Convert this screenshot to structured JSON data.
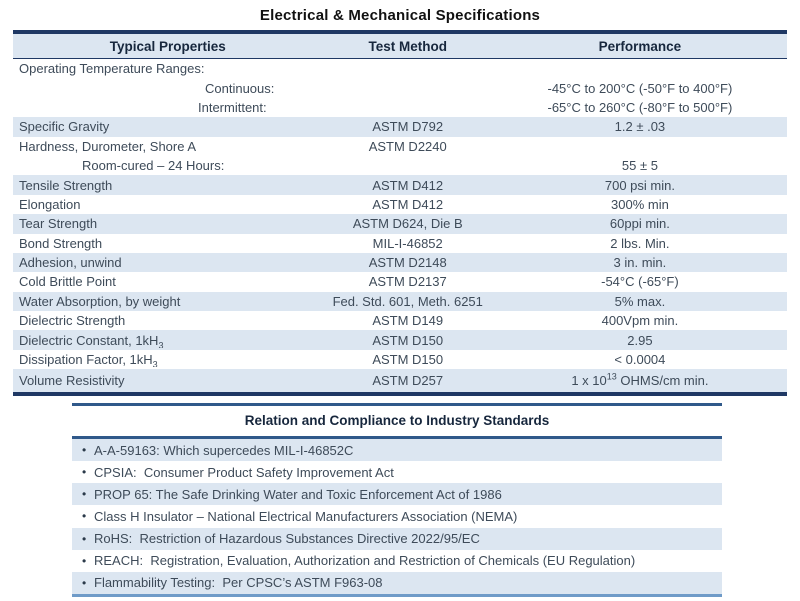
{
  "title": "Electrical & Mechanical Specifications",
  "colors": {
    "row_shade_blue": "#dce6f1",
    "table_border_navy": "#1f3864",
    "standards_border_blue": "#30598a",
    "standards_bottom_border": "#6f9bc8",
    "body_text": "#3e4b59"
  },
  "table": {
    "headers": [
      "Typical Properties",
      "Test Method",
      "Performance"
    ],
    "rows": [
      {
        "property": "Operating Temperature Ranges:",
        "method": "",
        "performance": "",
        "shade": "white",
        "indent": 0
      },
      {
        "property": "Continuous:",
        "method": "",
        "performance": "-45°C to 200°C (-50°F to 400°F)",
        "shade": "white",
        "indent": 186
      },
      {
        "property": "Intermittent:",
        "method": "",
        "performance": "-65°C to 260°C (-80°F to 500°F)",
        "shade": "white",
        "indent": 179
      },
      {
        "property": "Specific Gravity",
        "method": "ASTM D792",
        "performance": "1.2 ± .03",
        "shade": "blue",
        "indent": 0
      },
      {
        "property": "Hardness, Durometer, Shore A",
        "method": "ASTM D2240",
        "performance": "",
        "shade": "white",
        "indent": 0
      },
      {
        "property": "Room-cured – 24 Hours:",
        "method": "",
        "performance": "55 ± 5",
        "shade": "white",
        "indent": 63
      },
      {
        "property": "Tensile Strength",
        "method": "ASTM D412",
        "performance": "700 psi min.",
        "shade": "blue",
        "indent": 0
      },
      {
        "property": "Elongation",
        "method": "ASTM D412",
        "performance": "300% min",
        "shade": "white",
        "indent": 0
      },
      {
        "property": "Tear Strength",
        "method": "ASTM D624, Die B",
        "performance": "60ppi min.",
        "shade": "blue",
        "indent": 0
      },
      {
        "property": "Bond Strength",
        "method": "MIL-I-46852",
        "performance": "2 lbs. Min.",
        "shade": "white",
        "indent": 0
      },
      {
        "property": "Adhesion, unwind",
        "method": "ASTM D2148",
        "performance": "3 in. min.",
        "shade": "blue",
        "indent": 0
      },
      {
        "property": "Cold Brittle Point",
        "method": "ASTM D2137",
        "performance": "-54°C (-65°F)",
        "shade": "white",
        "indent": 0
      },
      {
        "property": "Water Absorption, by weight",
        "method": "Fed. Std. 601, Meth. 6251",
        "performance": "5% max.",
        "shade": "blue",
        "indent": 0
      },
      {
        "property": "Dielectric Strength",
        "method": "ASTM D149",
        "performance": "400Vpm min.",
        "shade": "white",
        "indent": 0
      },
      {
        "property": "Dielectric Constant, 1kH_{3}",
        "method": "ASTM D150",
        "performance": "2.95",
        "shade": "blue",
        "indent": 0
      },
      {
        "property": "Dissipation Factor, 1kH_{3}",
        "method": "ASTM D150",
        "performance": "< 0.0004",
        "shade": "white",
        "indent": 0
      },
      {
        "property": "Volume Resistivity",
        "method": "ASTM D257",
        "performance": "1 x 10^{13} OHMS/cm min.",
        "shade": "blue",
        "indent": 0
      }
    ]
  },
  "standards": {
    "title": "Relation and Compliance to Industry Standards",
    "bullet_icon": "•",
    "items": [
      {
        "text": "A-A-59163: Which supercedes MIL-I-46852C",
        "shade": "blue"
      },
      {
        "text": "CPSIA:  Consumer Product Safety Improvement Act",
        "shade": "white"
      },
      {
        "text": "PROP 65: The Safe Drinking Water and Toxic Enforcement Act of 1986",
        "shade": "blue"
      },
      {
        "text": "Class H Insulator – National Electrical Manufacturers Association (NEMA)",
        "shade": "white"
      },
      {
        "text": "RoHS:  Restriction of Hazardous Substances Directive 2022/95/EC",
        "shade": "blue"
      },
      {
        "text": "REACH:  Registration, Evaluation, Authorization and Restriction of Chemicals (EU Regulation)",
        "shade": "white"
      },
      {
        "text": "Flammability Testing:  Per CPSC’s ASTM F963-08",
        "shade": "blue"
      }
    ]
  }
}
